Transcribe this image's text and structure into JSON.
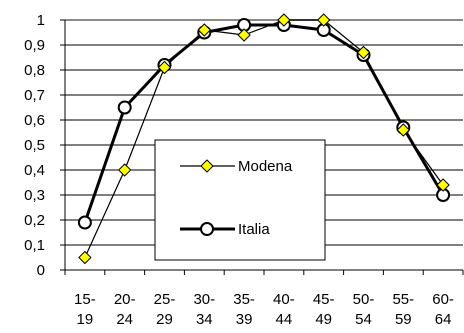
{
  "chart_data": {
    "type": "line",
    "categories": [
      [
        "15-",
        "19"
      ],
      [
        "20-",
        "24"
      ],
      [
        "25-",
        "29"
      ],
      [
        "30-",
        "34"
      ],
      [
        "35-",
        "39"
      ],
      [
        "40-",
        "44"
      ],
      [
        "45-",
        "49"
      ],
      [
        "50-",
        "54"
      ],
      [
        "55-",
        "59"
      ],
      [
        "60-",
        "64"
      ]
    ],
    "y_ticks": [
      "0",
      "0,1",
      "0,2",
      "0,3",
      "0,4",
      "0,5",
      "0,6",
      "0,7",
      "0,8",
      "0,9",
      "1"
    ],
    "ylim": [
      0,
      1
    ],
    "grid": true,
    "legend_position": "center",
    "series": [
      {
        "name": "Modena",
        "marker": "diamond",
        "line_color": "#000000",
        "marker_fill": "#ffff00",
        "values": [
          0.05,
          0.4,
          0.81,
          0.96,
          0.94,
          1.0,
          1.0,
          0.87,
          0.56,
          0.34
        ]
      },
      {
        "name": "Italia",
        "marker": "circle",
        "line_color": "#000000",
        "marker_fill": "#ffffff",
        "values": [
          0.19,
          0.65,
          0.82,
          0.95,
          0.98,
          0.98,
          0.96,
          0.86,
          0.57,
          0.3
        ]
      }
    ]
  }
}
